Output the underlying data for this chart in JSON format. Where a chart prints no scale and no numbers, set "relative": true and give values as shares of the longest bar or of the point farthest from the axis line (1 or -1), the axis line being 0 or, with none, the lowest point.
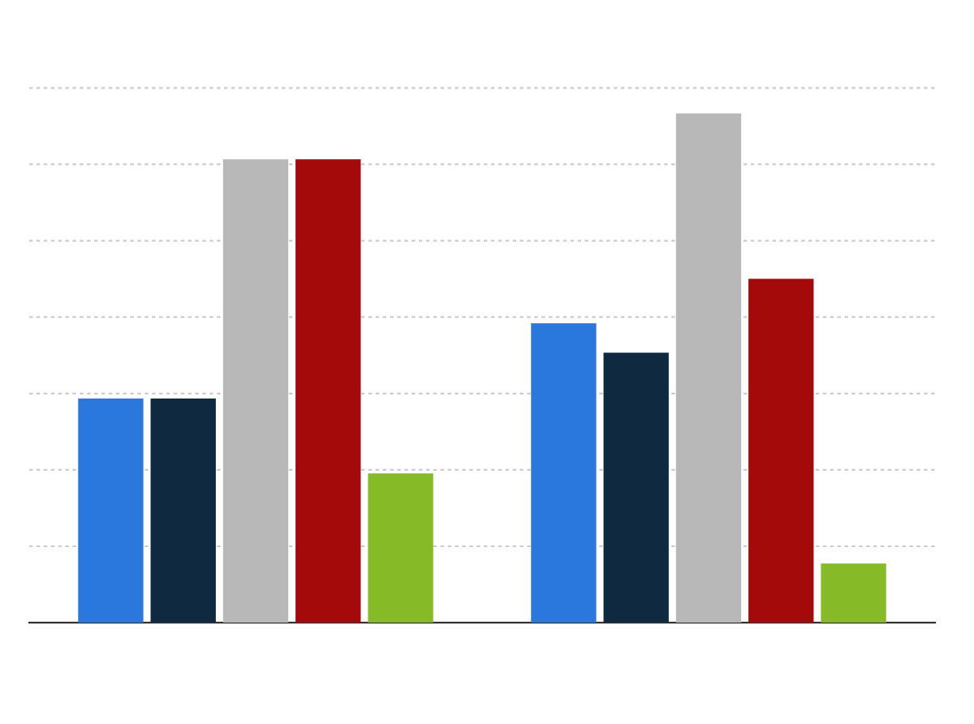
{
  "chart_data": {
    "type": "bar",
    "relative": true,
    "grid": "y",
    "categories": [
      null,
      null
    ],
    "series": [
      {
        "color": "#2a78dd",
        "values": [
          0.44,
          0.588
        ]
      },
      {
        "color": "#0f2a40",
        "values": [
          0.44,
          0.53
        ]
      },
      {
        "color": "#b8b8b8",
        "values": [
          0.91,
          1
        ]
      },
      {
        "color": "#a50a0a",
        "values": [
          0.91,
          0.675
        ]
      },
      {
        "color": "#86bb27",
        "values": [
          0.293,
          0.116
        ]
      }
    ]
  }
}
